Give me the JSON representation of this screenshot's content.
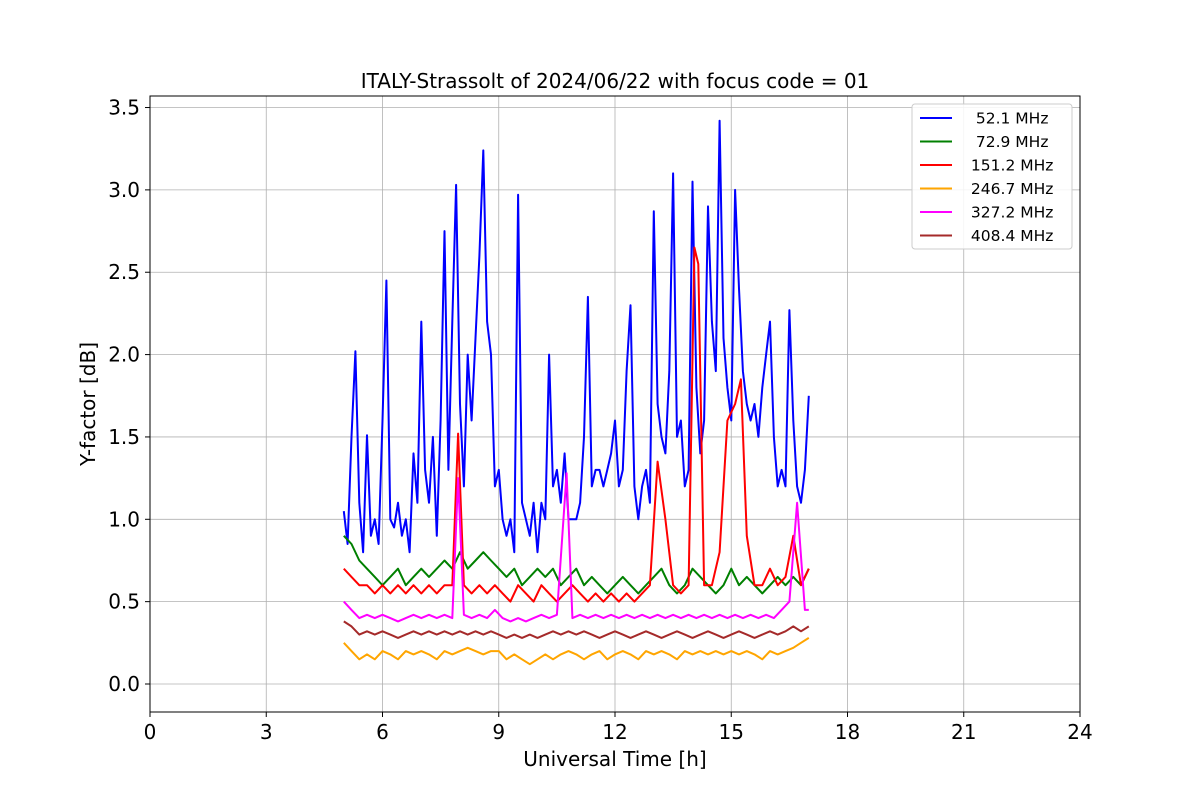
{
  "chart_data": {
    "type": "line",
    "title": "ITALY-Strassolt of 2024/06/22 with focus code = 01",
    "xlabel": "Universal Time [h]",
    "ylabel": "Y-factor [dB]",
    "xlim": [
      0,
      24
    ],
    "ylim": [
      -0.17,
      3.57
    ],
    "xticks": [
      0,
      3,
      6,
      9,
      12,
      15,
      18,
      21,
      24
    ],
    "yticks": [
      0.0,
      0.5,
      1.0,
      1.5,
      2.0,
      2.5,
      3.0,
      3.5
    ],
    "xtick_labels": [
      "0",
      "3",
      "6",
      "9",
      "12",
      "15",
      "18",
      "21",
      "24"
    ],
    "ytick_labels": [
      "0.0",
      "0.5",
      "1.0",
      "1.5",
      "2.0",
      "2.5",
      "3.0",
      "3.5"
    ],
    "grid": true,
    "legend_position": "top-right",
    "series": [
      {
        "name": "52.1 MHz",
        "legend_label": "  52.1 MHz",
        "color": "#0000ff",
        "x": [
          5.0,
          5.1,
          5.2,
          5.3,
          5.4,
          5.5,
          5.6,
          5.7,
          5.8,
          5.9,
          6.0,
          6.1,
          6.2,
          6.3,
          6.4,
          6.5,
          6.6,
          6.7,
          6.8,
          6.9,
          7.0,
          7.1,
          7.2,
          7.3,
          7.4,
          7.5,
          7.6,
          7.7,
          7.8,
          7.9,
          8.0,
          8.1,
          8.2,
          8.3,
          8.4,
          8.5,
          8.6,
          8.7,
          8.8,
          8.9,
          9.0,
          9.1,
          9.2,
          9.3,
          9.4,
          9.5,
          9.6,
          9.7,
          9.8,
          9.9,
          10.0,
          10.1,
          10.2,
          10.3,
          10.4,
          10.5,
          10.6,
          10.7,
          10.8,
          10.9,
          11.0,
          11.1,
          11.2,
          11.3,
          11.4,
          11.5,
          11.6,
          11.7,
          11.8,
          11.9,
          12.0,
          12.1,
          12.2,
          12.3,
          12.4,
          12.5,
          12.6,
          12.7,
          12.8,
          12.9,
          13.0,
          13.1,
          13.2,
          13.3,
          13.4,
          13.5,
          13.6,
          13.7,
          13.8,
          13.9,
          14.0,
          14.1,
          14.2,
          14.3,
          14.4,
          14.5,
          14.6,
          14.7,
          14.8,
          14.9,
          15.0,
          15.1,
          15.2,
          15.3,
          15.4,
          15.5,
          15.6,
          15.7,
          15.8,
          15.9,
          16.0,
          16.1,
          16.2,
          16.3,
          16.4,
          16.5,
          16.6,
          16.7,
          16.8,
          16.9,
          17.0
        ],
        "y": [
          1.05,
          0.85,
          1.5,
          2.02,
          1.1,
          0.8,
          1.51,
          0.9,
          1.0,
          0.85,
          1.6,
          2.45,
          1.0,
          0.95,
          1.1,
          0.9,
          1.0,
          0.8,
          1.4,
          1.1,
          2.2,
          1.3,
          1.1,
          1.5,
          0.9,
          1.6,
          2.75,
          1.3,
          2.2,
          3.03,
          1.7,
          1.2,
          2.0,
          1.6,
          2.1,
          2.6,
          3.24,
          2.2,
          2.0,
          1.2,
          1.3,
          1.0,
          0.9,
          1.0,
          0.8,
          2.97,
          1.1,
          1.0,
          0.9,
          1.1,
          0.8,
          1.1,
          1.0,
          2.0,
          1.2,
          1.3,
          1.1,
          1.4,
          1.0,
          1.0,
          1.0,
          1.1,
          1.5,
          2.35,
          1.2,
          1.3,
          1.3,
          1.2,
          1.3,
          1.4,
          1.6,
          1.2,
          1.3,
          1.9,
          2.3,
          1.2,
          1.0,
          1.2,
          1.3,
          1.1,
          2.87,
          1.7,
          1.5,
          1.4,
          1.9,
          3.1,
          1.5,
          1.6,
          1.2,
          1.3,
          3.05,
          1.8,
          1.4,
          1.6,
          2.9,
          2.2,
          1.9,
          3.42,
          2.1,
          1.8,
          1.6,
          3.0,
          2.4,
          1.9,
          1.7,
          1.6,
          1.7,
          1.5,
          1.8,
          2.0,
          2.2,
          1.5,
          1.2,
          1.3,
          1.2,
          2.27,
          1.6,
          1.2,
          1.1,
          1.3,
          1.75
        ]
      },
      {
        "name": "72.9 MHz",
        "legend_label": "  72.9 MHz",
        "color": "#008000",
        "x": [
          5.0,
          5.2,
          5.4,
          5.6,
          5.8,
          6.0,
          6.2,
          6.4,
          6.6,
          6.8,
          7.0,
          7.2,
          7.4,
          7.6,
          7.8,
          8.0,
          8.2,
          8.4,
          8.6,
          8.8,
          9.0,
          9.2,
          9.4,
          9.6,
          9.8,
          10.0,
          10.2,
          10.4,
          10.6,
          10.8,
          11.0,
          11.2,
          11.4,
          11.6,
          11.8,
          12.0,
          12.2,
          12.4,
          12.6,
          12.8,
          13.0,
          13.2,
          13.4,
          13.6,
          13.8,
          14.0,
          14.2,
          14.4,
          14.6,
          14.8,
          15.0,
          15.2,
          15.4,
          15.6,
          15.8,
          16.0,
          16.2,
          16.4,
          16.6,
          16.8,
          17.0
        ],
        "y": [
          0.9,
          0.85,
          0.75,
          0.7,
          0.65,
          0.6,
          0.65,
          0.7,
          0.6,
          0.65,
          0.7,
          0.65,
          0.7,
          0.75,
          0.7,
          0.8,
          0.7,
          0.75,
          0.8,
          0.75,
          0.7,
          0.65,
          0.7,
          0.6,
          0.65,
          0.7,
          0.65,
          0.7,
          0.6,
          0.65,
          0.7,
          0.6,
          0.65,
          0.6,
          0.55,
          0.6,
          0.65,
          0.6,
          0.55,
          0.6,
          0.65,
          0.7,
          0.6,
          0.55,
          0.6,
          0.7,
          0.65,
          0.6,
          0.55,
          0.6,
          0.7,
          0.6,
          0.65,
          0.6,
          0.55,
          0.6,
          0.65,
          0.6,
          0.65,
          0.6,
          0.7
        ]
      },
      {
        "name": "151.2 MHz",
        "legend_label": " 151.2 MHz",
        "color": "#ff0000",
        "x": [
          5.0,
          5.2,
          5.4,
          5.6,
          5.8,
          6.0,
          6.2,
          6.4,
          6.6,
          6.8,
          7.0,
          7.2,
          7.4,
          7.6,
          7.8,
          7.95,
          8.1,
          8.3,
          8.5,
          8.7,
          8.9,
          9.1,
          9.3,
          9.5,
          9.7,
          9.9,
          10.1,
          10.3,
          10.5,
          10.7,
          10.9,
          11.1,
          11.3,
          11.5,
          11.7,
          11.9,
          12.1,
          12.3,
          12.5,
          12.7,
          12.9,
          13.1,
          13.3,
          13.5,
          13.7,
          13.9,
          14.05,
          14.15,
          14.3,
          14.5,
          14.7,
          14.9,
          15.1,
          15.25,
          15.4,
          15.6,
          15.8,
          16.0,
          16.2,
          16.4,
          16.6,
          16.8,
          17.0
        ],
        "y": [
          0.7,
          0.65,
          0.6,
          0.6,
          0.55,
          0.6,
          0.55,
          0.6,
          0.55,
          0.6,
          0.55,
          0.6,
          0.55,
          0.6,
          0.6,
          1.52,
          0.6,
          0.55,
          0.6,
          0.55,
          0.6,
          0.55,
          0.5,
          0.6,
          0.55,
          0.5,
          0.6,
          0.55,
          0.5,
          0.55,
          0.6,
          0.55,
          0.5,
          0.55,
          0.5,
          0.55,
          0.5,
          0.55,
          0.5,
          0.55,
          0.6,
          1.35,
          1.0,
          0.6,
          0.55,
          0.6,
          2.65,
          2.55,
          0.6,
          0.6,
          0.8,
          1.6,
          1.7,
          1.85,
          0.9,
          0.6,
          0.6,
          0.7,
          0.6,
          0.65,
          0.9,
          0.6,
          0.7
        ]
      },
      {
        "name": "246.7 MHz",
        "legend_label": " 246.7 MHz",
        "color": "#ffa500",
        "x": [
          5.0,
          5.2,
          5.4,
          5.6,
          5.8,
          6.0,
          6.2,
          6.4,
          6.6,
          6.8,
          7.0,
          7.2,
          7.4,
          7.6,
          7.8,
          8.0,
          8.2,
          8.4,
          8.6,
          8.8,
          9.0,
          9.2,
          9.4,
          9.6,
          9.8,
          10.0,
          10.2,
          10.4,
          10.6,
          10.8,
          11.0,
          11.2,
          11.4,
          11.6,
          11.8,
          12.0,
          12.2,
          12.4,
          12.6,
          12.8,
          13.0,
          13.2,
          13.4,
          13.6,
          13.8,
          14.0,
          14.2,
          14.4,
          14.6,
          14.8,
          15.0,
          15.2,
          15.4,
          15.6,
          15.8,
          16.0,
          16.2,
          16.4,
          16.6,
          16.8,
          17.0
        ],
        "y": [
          0.25,
          0.2,
          0.15,
          0.18,
          0.15,
          0.2,
          0.18,
          0.15,
          0.2,
          0.18,
          0.2,
          0.18,
          0.15,
          0.2,
          0.18,
          0.2,
          0.22,
          0.2,
          0.18,
          0.2,
          0.2,
          0.15,
          0.18,
          0.15,
          0.12,
          0.15,
          0.18,
          0.15,
          0.18,
          0.2,
          0.18,
          0.15,
          0.18,
          0.2,
          0.15,
          0.18,
          0.2,
          0.18,
          0.15,
          0.2,
          0.18,
          0.2,
          0.18,
          0.15,
          0.2,
          0.18,
          0.2,
          0.18,
          0.2,
          0.18,
          0.2,
          0.18,
          0.2,
          0.18,
          0.15,
          0.2,
          0.18,
          0.2,
          0.22,
          0.25,
          0.28
        ]
      },
      {
        "name": "327.2 MHz",
        "legend_label": " 327.2 MHz",
        "color": "#ff00ff",
        "x": [
          5.0,
          5.2,
          5.4,
          5.6,
          5.8,
          6.0,
          6.2,
          6.4,
          6.6,
          6.8,
          7.0,
          7.2,
          7.4,
          7.6,
          7.8,
          7.95,
          8.1,
          8.3,
          8.5,
          8.7,
          8.9,
          9.1,
          9.3,
          9.5,
          9.7,
          9.9,
          10.1,
          10.3,
          10.5,
          10.75,
          10.9,
          11.1,
          11.3,
          11.5,
          11.7,
          11.9,
          12.1,
          12.3,
          12.5,
          12.7,
          12.9,
          13.1,
          13.3,
          13.5,
          13.7,
          13.9,
          14.1,
          14.3,
          14.5,
          14.7,
          14.9,
          15.1,
          15.3,
          15.5,
          15.7,
          15.9,
          16.1,
          16.3,
          16.5,
          16.7,
          16.9,
          17.0
        ],
        "y": [
          0.5,
          0.45,
          0.4,
          0.42,
          0.4,
          0.42,
          0.4,
          0.38,
          0.4,
          0.42,
          0.4,
          0.42,
          0.4,
          0.42,
          0.4,
          1.25,
          0.42,
          0.4,
          0.42,
          0.4,
          0.45,
          0.4,
          0.38,
          0.4,
          0.38,
          0.4,
          0.42,
          0.4,
          0.42,
          1.28,
          0.4,
          0.42,
          0.4,
          0.42,
          0.4,
          0.42,
          0.4,
          0.42,
          0.4,
          0.42,
          0.4,
          0.42,
          0.4,
          0.42,
          0.4,
          0.42,
          0.4,
          0.42,
          0.4,
          0.42,
          0.4,
          0.42,
          0.4,
          0.42,
          0.4,
          0.42,
          0.4,
          0.45,
          0.5,
          1.1,
          0.45,
          0.45
        ]
      },
      {
        "name": "408.4 MHz",
        "legend_label": " 408.4 MHz",
        "color": "#a52a2a",
        "x": [
          5.0,
          5.2,
          5.4,
          5.6,
          5.8,
          6.0,
          6.2,
          6.4,
          6.6,
          6.8,
          7.0,
          7.2,
          7.4,
          7.6,
          7.8,
          8.0,
          8.2,
          8.4,
          8.6,
          8.8,
          9.0,
          9.2,
          9.4,
          9.6,
          9.8,
          10.0,
          10.2,
          10.4,
          10.6,
          10.8,
          11.0,
          11.2,
          11.4,
          11.6,
          11.8,
          12.0,
          12.2,
          12.4,
          12.6,
          12.8,
          13.0,
          13.2,
          13.4,
          13.6,
          13.8,
          14.0,
          14.2,
          14.4,
          14.6,
          14.8,
          15.0,
          15.2,
          15.4,
          15.6,
          15.8,
          16.0,
          16.2,
          16.4,
          16.6,
          16.8,
          17.0
        ],
        "y": [
          0.38,
          0.35,
          0.3,
          0.32,
          0.3,
          0.32,
          0.3,
          0.28,
          0.3,
          0.32,
          0.3,
          0.32,
          0.3,
          0.32,
          0.3,
          0.32,
          0.3,
          0.32,
          0.3,
          0.32,
          0.3,
          0.28,
          0.3,
          0.28,
          0.3,
          0.28,
          0.3,
          0.32,
          0.3,
          0.32,
          0.3,
          0.32,
          0.3,
          0.28,
          0.3,
          0.32,
          0.3,
          0.28,
          0.3,
          0.32,
          0.3,
          0.28,
          0.3,
          0.32,
          0.3,
          0.28,
          0.3,
          0.32,
          0.3,
          0.28,
          0.3,
          0.32,
          0.3,
          0.28,
          0.3,
          0.32,
          0.3,
          0.32,
          0.35,
          0.32,
          0.35
        ]
      }
    ]
  }
}
